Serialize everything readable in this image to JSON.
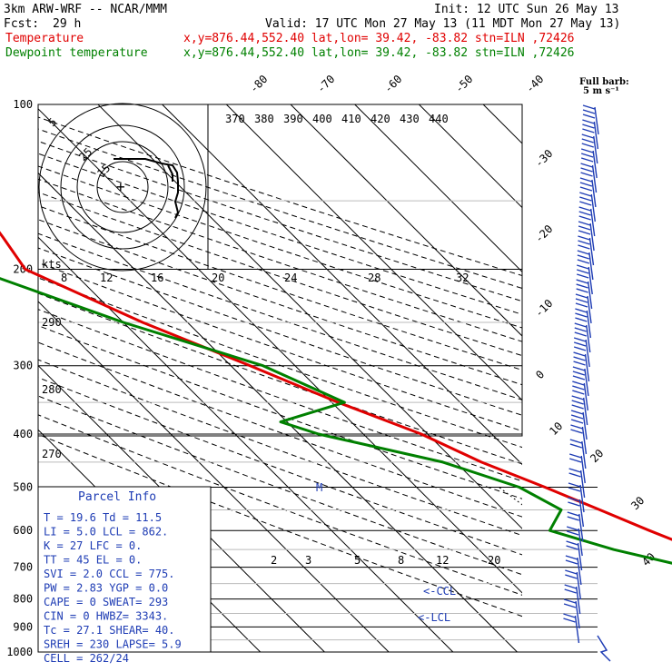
{
  "header": {
    "model": "3km ARW-WRF -- NCAR/MMM",
    "init": "Init: 12 UTC Sun 26 May 13",
    "fcst_label": "Fcst:",
    "fcst_value": "29 h",
    "valid": "Valid: 17 UTC Mon 27 May 13 (11 MDT Mon 27 May 13)",
    "temp_name": "Temperature",
    "temp_loc": "x,y=876.44,552.40   lat,lon= 39.42, -83.82  stn=ILN ,72426",
    "dew_name": "Dewpoint temperature",
    "dew_loc": "x,y=876.44,552.40   lat,lon= 39.42, -83.82  stn=ILN ,72426",
    "full_barb_1": "Full barb:",
    "full_barb_2": "5 m s⁻¹"
  },
  "colors": {
    "temperature": "#e00000",
    "dewpoint": "#008000",
    "barbs": "#1e3cb4",
    "background": "#ffffff"
  },
  "hodograph": {
    "rings": [
      "5",
      "25",
      "15"
    ],
    "center_marker": "+",
    "units_label": "kts"
  },
  "parcel_info": {
    "title": "Parcel Info",
    "rows": [
      "T  =   19.6  Td =  11.5",
      "LI =    5.0  LCL =  862.",
      "K  =     27  LFC =    0.",
      "TT =     45  EL  =    0.",
      "SVI =   2.0  CCL =  775.",
      "PW =   2.83  YGP =   0.0",
      "CAPE =    0  SWEAT=  293",
      "CIN =     0  HWBZ= 3343.",
      "Tc =   27.1  SHEAR=  40.",
      "SREH =  230  LAPSE=  5.9",
      "CELL = 262/24"
    ]
  },
  "chart_data": {
    "type": "line",
    "title": "",
    "xlabel": "",
    "ylabel": "",
    "y_scale": "log",
    "ylim": [
      1000,
      100
    ],
    "pressure_ticks": [
      100,
      200,
      300,
      400,
      500,
      600,
      700,
      800,
      900,
      1000
    ],
    "isotherm_labels_top": [
      "-80",
      "-70",
      "-60",
      "-50",
      "-40"
    ],
    "isotherm_labels_right": [
      "-30",
      "-20",
      "-10",
      "0",
      "10",
      "20",
      "30",
      "40"
    ],
    "theta_e_labels": [
      "370",
      "380",
      "390",
      "400",
      "410",
      "420",
      "430",
      "440"
    ],
    "theta_labels": [
      "290",
      "280",
      "270"
    ],
    "mixing_ratio_labels_upper": [
      "8",
      "12",
      "16",
      "20",
      "24",
      "28",
      "32"
    ],
    "mixing_ratio_labels_lower": [
      "2",
      "3",
      "5",
      "8",
      "12",
      "20"
    ],
    "annotations": [
      "M",
      "<-CCL",
      "<-LCL"
    ],
    "series": [
      {
        "name": "Temperature",
        "points": [
          [
            1000,
            24
          ],
          [
            975,
            22
          ],
          [
            950,
            20.5
          ],
          [
            925,
            20.5
          ],
          [
            900,
            19
          ],
          [
            875,
            18.5
          ],
          [
            850,
            18
          ],
          [
            800,
            15
          ],
          [
            750,
            12
          ],
          [
            700,
            8
          ],
          [
            650,
            4
          ],
          [
            600,
            -0.5
          ],
          [
            550,
            -5
          ],
          [
            500,
            -10
          ],
          [
            450,
            -16
          ],
          [
            400,
            -21
          ],
          [
            350,
            -29
          ],
          [
            300,
            -37
          ],
          [
            250,
            -47
          ],
          [
            200,
            -57
          ],
          [
            175,
            -55.5
          ],
          [
            150,
            -54
          ],
          [
            135,
            -53
          ],
          [
            125,
            -50
          ],
          [
            110,
            -49
          ],
          [
            100,
            -46
          ]
        ]
      },
      {
        "name": "Dewpoint temperature",
        "points": [
          [
            1000,
            10.5
          ],
          [
            975,
            10.5
          ],
          [
            950,
            10.5
          ],
          [
            925,
            11
          ],
          [
            900,
            15
          ],
          [
            875,
            15
          ],
          [
            850,
            13
          ],
          [
            800,
            9
          ],
          [
            750,
            6
          ],
          [
            700,
            0
          ],
          [
            650,
            -9
          ],
          [
            600,
            -16
          ],
          [
            550,
            -11
          ],
          [
            500,
            -14
          ],
          [
            450,
            -22
          ],
          [
            400,
            -37
          ],
          [
            380,
            -41
          ],
          [
            350,
            -28
          ],
          [
            300,
            -35
          ],
          [
            250,
            -50
          ],
          [
            200,
            -65
          ],
          [
            175,
            -67
          ],
          [
            150,
            -65
          ],
          [
            140,
            -63
          ],
          [
            125,
            -66
          ],
          [
            110,
            -80
          ],
          [
            100,
            -85
          ]
        ]
      }
    ]
  }
}
